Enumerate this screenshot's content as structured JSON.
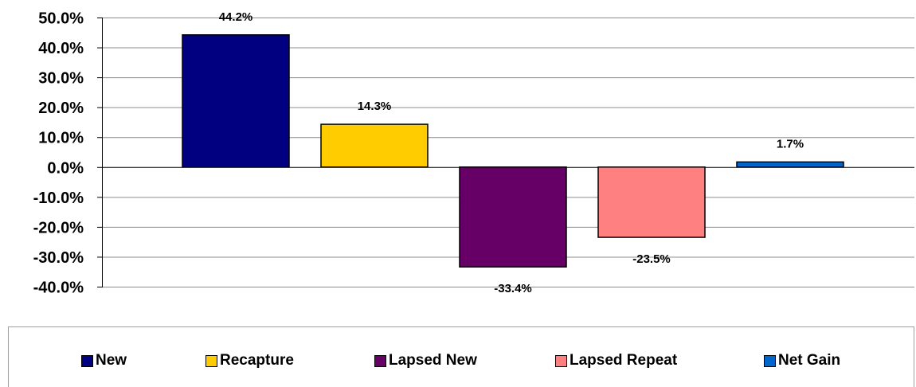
{
  "chart_data": {
    "type": "bar",
    "categories": [
      "New",
      "Recapture",
      "Lapsed New",
      "Lapsed Repeat",
      "Net Gain"
    ],
    "values": [
      44.2,
      14.3,
      -33.4,
      -23.5,
      1.7
    ],
    "data_labels": [
      "44.2%",
      "14.3%",
      "-33.4%",
      "-23.5%",
      "1.7%"
    ],
    "colors": [
      "#000080",
      "#ffcc00",
      "#660066",
      "#ff8080",
      "#0066cc"
    ],
    "ylim": [
      -40,
      50
    ],
    "yticks": [
      50,
      40,
      30,
      20,
      10,
      0,
      -10,
      -20,
      -30,
      -40
    ],
    "ytick_labels": [
      "50.0%",
      "40.0%",
      "30.0%",
      "20.0%",
      "10.0%",
      "0.0%",
      "-10.0%",
      "-20.0%",
      "-30.0%",
      "-40.0%"
    ],
    "grid": true,
    "legend_position": "bottom",
    "title": "",
    "xlabel": "",
    "ylabel": ""
  },
  "legend": {
    "items": [
      {
        "label": "New",
        "color": "#000080"
      },
      {
        "label": "Recapture",
        "color": "#ffcc00"
      },
      {
        "label": "Lapsed New",
        "color": "#660066"
      },
      {
        "label": "Lapsed Repeat",
        "color": "#ff8080"
      },
      {
        "label": "Net Gain",
        "color": "#0066cc"
      }
    ]
  }
}
